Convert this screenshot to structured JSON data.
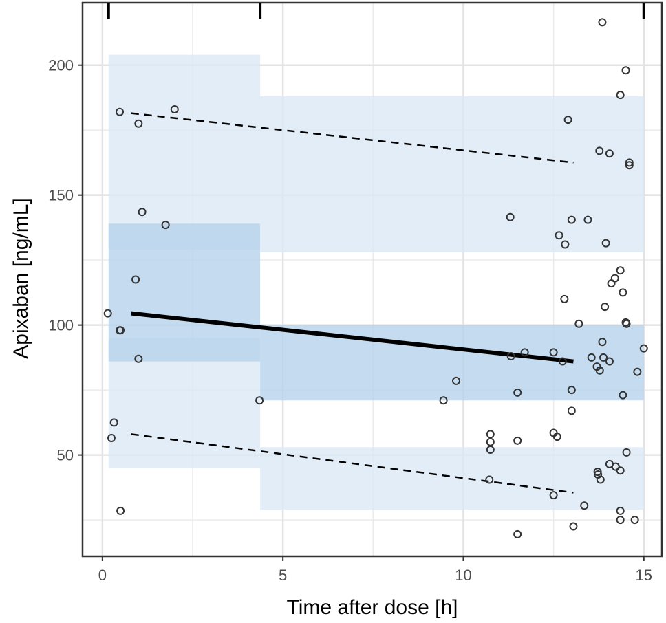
{
  "chart_data": {
    "type": "scatter",
    "title": "",
    "xlabel": "Time after dose [h]",
    "ylabel": "Apixaban [ng/mL]",
    "xlim": [
      -0.55,
      15.5
    ],
    "ylim": [
      11,
      224
    ],
    "x_ticks": [
      0,
      5,
      10,
      15
    ],
    "x_tick_labels": [
      "0",
      "5",
      "10",
      "15"
    ],
    "y_ticks": [
      50,
      100,
      150,
      200
    ],
    "y_tick_labels": [
      "50",
      "100",
      "150",
      "200"
    ],
    "x_minor_grid": [
      2.5,
      7.5,
      12.5
    ],
    "y_minor_grid": [
      25,
      75,
      125,
      175
    ],
    "bin_boundaries": [
      0.17,
      4.37,
      15.0
    ],
    "colors": {
      "outer_band": "#dae8f5",
      "median_band": "#b5d2ec",
      "points": "#333333",
      "lines": "#000000"
    },
    "bands": [
      {
        "name": "lower-percentile-ci",
        "x": [
          0.17,
          4.37
        ],
        "y": [
          45,
          95
        ]
      },
      {
        "name": "upper-percentile-ci",
        "x": [
          0.17,
          4.37
        ],
        "y": [
          129,
          204
        ]
      },
      {
        "name": "median-ci",
        "x": [
          0.17,
          4.37
        ],
        "y": [
          86,
          139
        ]
      },
      {
        "name": "upper-percentile-ci",
        "x": [
          4.37,
          15.0
        ],
        "y": [
          128,
          188
        ]
      },
      {
        "name": "median-ci",
        "x": [
          4.37,
          15.0
        ],
        "y": [
          71,
          100
        ]
      },
      {
        "name": "lower-percentile-ci",
        "x": [
          4.37,
          15.0
        ],
        "y": [
          29,
          53
        ]
      }
    ],
    "series": [
      {
        "name": "median",
        "style": "solid",
        "x": [
          0.8,
          13.05
        ],
        "y": [
          104.5,
          86
        ]
      },
      {
        "name": "upper-percentile",
        "style": "dashed",
        "x": [
          0.8,
          13.05
        ],
        "y": [
          181.5,
          162.5
        ]
      },
      {
        "name": "lower-percentile",
        "style": "dashed",
        "x": [
          0.8,
          13.05
        ],
        "y": [
          58,
          35.5
        ]
      }
    ],
    "points": [
      [
        0.15,
        104.5
      ],
      [
        0.25,
        56.5
      ],
      [
        0.32,
        62.5
      ],
      [
        0.48,
        182
      ],
      [
        0.48,
        98
      ],
      [
        0.5,
        98
      ],
      [
        0.5,
        28.5
      ],
      [
        0.92,
        117.5
      ],
      [
        1.0,
        177.5
      ],
      [
        1.0,
        87
      ],
      [
        1.1,
        143.5
      ],
      [
        1.75,
        138.5
      ],
      [
        2.0,
        183
      ],
      [
        4.35,
        71
      ],
      [
        9.45,
        71
      ],
      [
        9.8,
        78.5
      ],
      [
        10.72,
        40.5
      ],
      [
        10.75,
        58
      ],
      [
        10.75,
        55
      ],
      [
        10.75,
        52
      ],
      [
        11.3,
        141.5
      ],
      [
        11.32,
        88
      ],
      [
        11.5,
        74
      ],
      [
        11.5,
        55.5
      ],
      [
        11.5,
        19.5
      ],
      [
        11.7,
        89.5
      ],
      [
        12.5,
        89.5
      ],
      [
        12.5,
        58.5
      ],
      [
        12.5,
        34.5
      ],
      [
        12.6,
        57
      ],
      [
        12.65,
        134.5
      ],
      [
        12.75,
        86
      ],
      [
        12.8,
        110
      ],
      [
        12.82,
        131
      ],
      [
        12.9,
        179
      ],
      [
        13.0,
        140.5
      ],
      [
        13.0,
        75
      ],
      [
        13.0,
        67
      ],
      [
        13.05,
        22.5
      ],
      [
        13.2,
        100.5
      ],
      [
        13.35,
        30.5
      ],
      [
        13.45,
        140.5
      ],
      [
        13.55,
        87.5
      ],
      [
        13.7,
        84
      ],
      [
        13.72,
        43.5
      ],
      [
        13.73,
        42.5
      ],
      [
        13.77,
        167
      ],
      [
        13.78,
        82.5
      ],
      [
        13.8,
        40.5
      ],
      [
        13.85,
        216.5
      ],
      [
        13.85,
        93.5
      ],
      [
        13.88,
        87.5
      ],
      [
        13.92,
        107
      ],
      [
        13.95,
        131.5
      ],
      [
        14.05,
        166
      ],
      [
        14.05,
        86
      ],
      [
        14.05,
        46.5
      ],
      [
        14.1,
        116
      ],
      [
        14.2,
        118
      ],
      [
        14.22,
        45.5
      ],
      [
        14.35,
        188.5
      ],
      [
        14.35,
        121
      ],
      [
        14.35,
        44
      ],
      [
        14.35,
        28.5
      ],
      [
        14.35,
        25
      ],
      [
        14.42,
        73
      ],
      [
        14.42,
        112.5
      ],
      [
        14.5,
        198
      ],
      [
        14.5,
        101
      ],
      [
        14.52,
        100.5
      ],
      [
        14.52,
        51
      ],
      [
        14.6,
        162.5
      ],
      [
        14.6,
        161.5
      ],
      [
        14.75,
        25
      ],
      [
        14.82,
        82
      ],
      [
        15.0,
        91
      ]
    ]
  }
}
